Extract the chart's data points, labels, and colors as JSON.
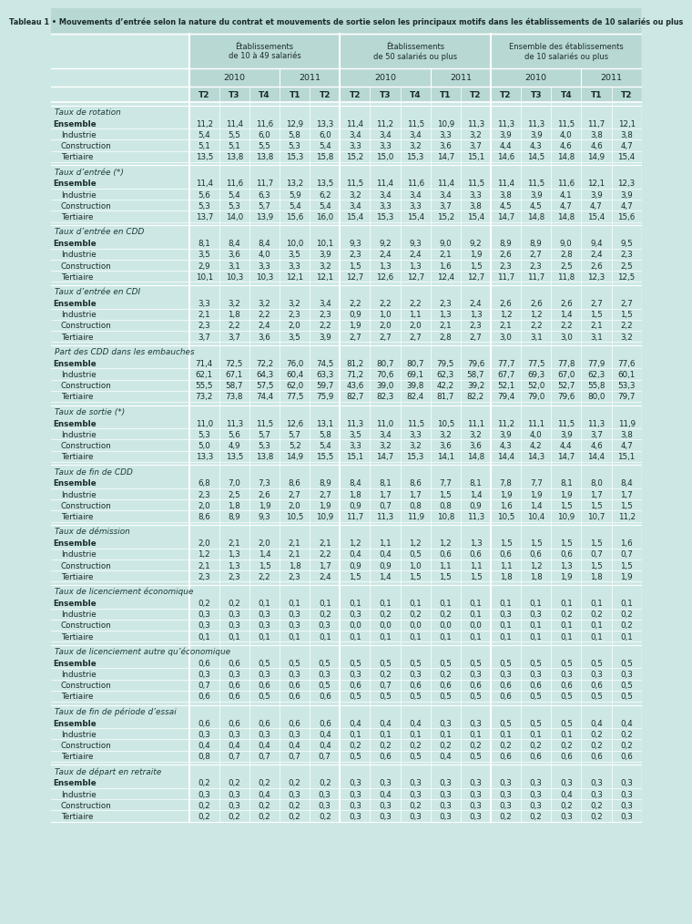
{
  "title": "Tableau 1 • Mouvements d’entrée selon la nature du contrat et mouvements de sortie selon les principaux motifs dans les établissements de 10 salariés ou plus",
  "col_groups": [
    {
      "label": "Établissements\nde 10 à 49 salariés"
    },
    {
      "label": "Établissements\nde 50 salariés ou plus"
    },
    {
      "label": "Ensemble des établissements\nde 10 salariés ou plus"
    }
  ],
  "quarters": [
    "T2",
    "T3",
    "T4",
    "T1",
    "T2"
  ],
  "sections": [
    {
      "title": "Taux de rotation",
      "rows": [
        {
          "label": "Ensemble",
          "bold": true,
          "values": [
            11.2,
            11.4,
            11.6,
            12.9,
            13.3,
            11.4,
            11.2,
            11.5,
            10.9,
            11.3,
            11.3,
            11.3,
            11.5,
            11.7,
            12.1
          ]
        },
        {
          "label": "Industrie",
          "bold": false,
          "values": [
            5.4,
            5.5,
            6.0,
            5.8,
            6.0,
            3.4,
            3.4,
            3.4,
            3.3,
            3.2,
            3.9,
            3.9,
            4.0,
            3.8,
            3.8
          ]
        },
        {
          "label": "Construction",
          "bold": false,
          "values": [
            5.1,
            5.1,
            5.5,
            5.3,
            5.4,
            3.3,
            3.3,
            3.2,
            3.6,
            3.7,
            4.4,
            4.3,
            4.6,
            4.6,
            4.7
          ]
        },
        {
          "label": "Tertiaire",
          "bold": false,
          "values": [
            13.5,
            13.8,
            13.8,
            15.3,
            15.8,
            15.2,
            15.0,
            15.3,
            14.7,
            15.1,
            14.6,
            14.5,
            14.8,
            14.9,
            15.4
          ]
        }
      ]
    },
    {
      "title": "Taux d’entrée (*)",
      "rows": [
        {
          "label": "Ensemble",
          "bold": true,
          "values": [
            11.4,
            11.6,
            11.7,
            13.2,
            13.5,
            11.5,
            11.4,
            11.6,
            11.4,
            11.5,
            11.4,
            11.5,
            11.6,
            12.1,
            12.3
          ]
        },
        {
          "label": "Industrie",
          "bold": false,
          "values": [
            5.6,
            5.4,
            6.3,
            5.9,
            6.2,
            3.2,
            3.4,
            3.4,
            3.4,
            3.3,
            3.8,
            3.9,
            4.1,
            3.9,
            3.9
          ]
        },
        {
          "label": "Construction",
          "bold": false,
          "values": [
            5.3,
            5.3,
            5.7,
            5.4,
            5.4,
            3.4,
            3.3,
            3.3,
            3.7,
            3.8,
            4.5,
            4.5,
            4.7,
            4.7,
            4.7
          ]
        },
        {
          "label": "Tertiaire",
          "bold": false,
          "values": [
            13.7,
            14.0,
            13.9,
            15.6,
            16.0,
            15.4,
            15.3,
            15.4,
            15.2,
            15.4,
            14.7,
            14.8,
            14.8,
            15.4,
            15.6
          ]
        }
      ]
    },
    {
      "title": "Taux d’entrée en CDD",
      "rows": [
        {
          "label": "Ensemble",
          "bold": true,
          "values": [
            8.1,
            8.4,
            8.4,
            10.0,
            10.1,
            9.3,
            9.2,
            9.3,
            9.0,
            9.2,
            8.9,
            8.9,
            9.0,
            9.4,
            9.5
          ]
        },
        {
          "label": "Industrie",
          "bold": false,
          "values": [
            3.5,
            3.6,
            4.0,
            3.5,
            3.9,
            2.3,
            2.4,
            2.4,
            2.1,
            1.9,
            2.6,
            2.7,
            2.8,
            2.4,
            2.3
          ]
        },
        {
          "label": "Construction",
          "bold": false,
          "values": [
            2.9,
            3.1,
            3.3,
            3.3,
            3.2,
            1.5,
            1.3,
            1.3,
            1.6,
            1.5,
            2.3,
            2.3,
            2.5,
            2.6,
            2.5
          ]
        },
        {
          "label": "Tertiaire",
          "bold": false,
          "values": [
            10.1,
            10.3,
            10.3,
            12.1,
            12.1,
            12.7,
            12.6,
            12.7,
            12.4,
            12.7,
            11.7,
            11.7,
            11.8,
            12.3,
            12.5
          ]
        }
      ]
    },
    {
      "title": "Taux d’entrée en CDI",
      "rows": [
        {
          "label": "Ensemble",
          "bold": true,
          "values": [
            3.3,
            3.2,
            3.2,
            3.2,
            3.4,
            2.2,
            2.2,
            2.2,
            2.3,
            2.4,
            2.6,
            2.6,
            2.6,
            2.7,
            2.7
          ]
        },
        {
          "label": "Industrie",
          "bold": false,
          "values": [
            2.1,
            1.8,
            2.2,
            2.3,
            2.3,
            0.9,
            1.0,
            1.1,
            1.3,
            1.3,
            1.2,
            1.2,
            1.4,
            1.5,
            1.5
          ]
        },
        {
          "label": "Construction",
          "bold": false,
          "values": [
            2.3,
            2.2,
            2.4,
            2.0,
            2.2,
            1.9,
            2.0,
            2.0,
            2.1,
            2.3,
            2.1,
            2.2,
            2.2,
            2.1,
            2.2
          ]
        },
        {
          "label": "Tertiaire",
          "bold": false,
          "values": [
            3.7,
            3.7,
            3.6,
            3.5,
            3.9,
            2.7,
            2.7,
            2.7,
            2.8,
            2.7,
            3.0,
            3.1,
            3.0,
            3.1,
            3.2
          ]
        }
      ]
    },
    {
      "title": "Part des CDD dans les embauches",
      "rows": [
        {
          "label": "Ensemble",
          "bold": true,
          "values": [
            71.4,
            72.5,
            72.2,
            76.0,
            74.5,
            81.2,
            80.7,
            80.7,
            79.5,
            79.6,
            77.7,
            77.5,
            77.8,
            77.9,
            77.6
          ]
        },
        {
          "label": "Industrie",
          "bold": false,
          "values": [
            62.1,
            67.1,
            64.3,
            60.4,
            63.3,
            71.2,
            70.6,
            69.1,
            62.3,
            58.7,
            67.7,
            69.3,
            67.0,
            62.3,
            60.1
          ]
        },
        {
          "label": "Construction",
          "bold": false,
          "values": [
            55.5,
            58.7,
            57.5,
            62.0,
            59.7,
            43.6,
            39.0,
            39.8,
            42.2,
            39.2,
            52.1,
            52.0,
            52.7,
            55.8,
            53.3
          ]
        },
        {
          "label": "Tertiaire",
          "bold": false,
          "values": [
            73.2,
            73.8,
            74.4,
            77.5,
            75.9,
            82.7,
            82.3,
            82.4,
            81.7,
            82.2,
            79.4,
            79.0,
            79.6,
            80.0,
            79.7
          ]
        }
      ]
    },
    {
      "title": "Taux de sortie (*)",
      "rows": [
        {
          "label": "Ensemble",
          "bold": true,
          "values": [
            11.0,
            11.3,
            11.5,
            12.6,
            13.1,
            11.3,
            11.0,
            11.5,
            10.5,
            11.1,
            11.2,
            11.1,
            11.5,
            11.3,
            11.9
          ]
        },
        {
          "label": "Industrie",
          "bold": false,
          "values": [
            5.3,
            5.6,
            5.7,
            5.7,
            5.8,
            3.5,
            3.4,
            3.3,
            3.2,
            3.2,
            3.9,
            4.0,
            3.9,
            3.7,
            3.8
          ]
        },
        {
          "label": "Construction",
          "bold": false,
          "values": [
            5.0,
            4.9,
            5.3,
            5.2,
            5.4,
            3.3,
            3.2,
            3.2,
            3.6,
            3.6,
            4.3,
            4.2,
            4.4,
            4.6,
            4.7
          ]
        },
        {
          "label": "Tertiaire",
          "bold": false,
          "values": [
            13.3,
            13.5,
            13.8,
            14.9,
            15.5,
            15.1,
            14.7,
            15.3,
            14.1,
            14.8,
            14.4,
            14.3,
            14.7,
            14.4,
            15.1
          ]
        }
      ]
    },
    {
      "title": "Taux de fin de CDD",
      "rows": [
        {
          "label": "Ensemble",
          "bold": true,
          "values": [
            6.8,
            7.0,
            7.3,
            8.6,
            8.9,
            8.4,
            8.1,
            8.6,
            7.7,
            8.1,
            7.8,
            7.7,
            8.1,
            8.0,
            8.4
          ]
        },
        {
          "label": "Industrie",
          "bold": false,
          "values": [
            2.3,
            2.5,
            2.6,
            2.7,
            2.7,
            1.8,
            1.7,
            1.7,
            1.5,
            1.4,
            1.9,
            1.9,
            1.9,
            1.7,
            1.7
          ]
        },
        {
          "label": "Construction",
          "bold": false,
          "values": [
            2.0,
            1.8,
            1.9,
            2.0,
            1.9,
            0.9,
            0.7,
            0.8,
            0.8,
            0.9,
            1.6,
            1.4,
            1.5,
            1.5,
            1.5
          ]
        },
        {
          "label": "Tertiaire",
          "bold": false,
          "values": [
            8.6,
            8.9,
            9.3,
            10.5,
            10.9,
            11.7,
            11.3,
            11.9,
            10.8,
            11.3,
            10.5,
            10.4,
            10.9,
            10.7,
            11.2
          ]
        }
      ]
    },
    {
      "title": "Taux de démission",
      "rows": [
        {
          "label": "Ensemble",
          "bold": true,
          "values": [
            2.0,
            2.1,
            2.0,
            2.1,
            2.1,
            1.2,
            1.1,
            1.2,
            1.2,
            1.3,
            1.5,
            1.5,
            1.5,
            1.5,
            1.6
          ]
        },
        {
          "label": "Industrie",
          "bold": false,
          "values": [
            1.2,
            1.3,
            1.4,
            2.1,
            2.2,
            0.4,
            0.4,
            0.5,
            0.6,
            0.6,
            0.6,
            0.6,
            0.6,
            0.7,
            0.7
          ]
        },
        {
          "label": "Construction",
          "bold": false,
          "values": [
            2.1,
            1.3,
            1.5,
            1.8,
            1.7,
            0.9,
            0.9,
            1.0,
            1.1,
            1.1,
            1.1,
            1.2,
            1.3,
            1.5,
            1.5
          ]
        },
        {
          "label": "Tertiaire",
          "bold": false,
          "values": [
            2.3,
            2.3,
            2.2,
            2.3,
            2.4,
            1.5,
            1.4,
            1.5,
            1.5,
            1.5,
            1.8,
            1.8,
            1.9,
            1.8,
            1.9
          ]
        }
      ]
    },
    {
      "title": "Taux de licenciement économique",
      "rows": [
        {
          "label": "Ensemble",
          "bold": true,
          "values": [
            0.2,
            0.2,
            0.1,
            0.1,
            0.1,
            0.1,
            0.1,
            0.1,
            0.1,
            0.1,
            0.1,
            0.1,
            0.1,
            0.1,
            0.1
          ]
        },
        {
          "label": "Industrie",
          "bold": false,
          "values": [
            0.3,
            0.3,
            0.3,
            0.3,
            0.2,
            0.3,
            0.2,
            0.2,
            0.2,
            0.1,
            0.3,
            0.3,
            0.2,
            0.2,
            0.2
          ]
        },
        {
          "label": "Construction",
          "bold": false,
          "values": [
            0.3,
            0.3,
            0.3,
            0.3,
            0.3,
            0.0,
            0.0,
            0.0,
            0.0,
            0.0,
            0.1,
            0.1,
            0.1,
            0.1,
            0.2
          ]
        },
        {
          "label": "Tertiaire",
          "bold": false,
          "values": [
            0.1,
            0.1,
            0.1,
            0.1,
            0.1,
            0.1,
            0.1,
            0.1,
            0.1,
            0.1,
            0.1,
            0.1,
            0.1,
            0.1,
            0.1
          ]
        }
      ]
    },
    {
      "title": "Taux de licenciement autre qu’économique",
      "rows": [
        {
          "label": "Ensemble",
          "bold": true,
          "values": [
            0.6,
            0.6,
            0.5,
            0.5,
            0.5,
            0.5,
            0.5,
            0.5,
            0.5,
            0.5,
            0.5,
            0.5,
            0.5,
            0.5,
            0.5
          ]
        },
        {
          "label": "Industrie",
          "bold": false,
          "values": [
            0.3,
            0.3,
            0.3,
            0.3,
            0.3,
            0.3,
            0.2,
            0.3,
            0.2,
            0.3,
            0.3,
            0.3,
            0.3,
            0.3,
            0.3
          ]
        },
        {
          "label": "Construction",
          "bold": false,
          "values": [
            0.7,
            0.6,
            0.6,
            0.6,
            0.5,
            0.6,
            0.7,
            0.6,
            0.6,
            0.6,
            0.6,
            0.6,
            0.6,
            0.6,
            0.5
          ]
        },
        {
          "label": "Tertiaire",
          "bold": false,
          "values": [
            0.6,
            0.6,
            0.5,
            0.6,
            0.6,
            0.5,
            0.5,
            0.5,
            0.5,
            0.5,
            0.6,
            0.5,
            0.5,
            0.5,
            0.5
          ]
        }
      ]
    },
    {
      "title": "Taux de fin de période d’essai",
      "rows": [
        {
          "label": "Ensemble",
          "bold": true,
          "values": [
            0.6,
            0.6,
            0.6,
            0.6,
            0.6,
            0.4,
            0.4,
            0.4,
            0.3,
            0.3,
            0.5,
            0.5,
            0.5,
            0.4,
            0.4
          ]
        },
        {
          "label": "Industrie",
          "bold": false,
          "values": [
            0.3,
            0.3,
            0.3,
            0.3,
            0.4,
            0.1,
            0.1,
            0.1,
            0.1,
            0.1,
            0.1,
            0.1,
            0.1,
            0.2,
            0.2
          ]
        },
        {
          "label": "Construction",
          "bold": false,
          "values": [
            0.4,
            0.4,
            0.4,
            0.4,
            0.4,
            0.2,
            0.2,
            0.2,
            0.2,
            0.2,
            0.2,
            0.2,
            0.2,
            0.2,
            0.2
          ]
        },
        {
          "label": "Tertiaire",
          "bold": false,
          "values": [
            0.8,
            0.7,
            0.7,
            0.7,
            0.7,
            0.5,
            0.6,
            0.5,
            0.4,
            0.5,
            0.6,
            0.6,
            0.6,
            0.6,
            0.6
          ]
        }
      ]
    },
    {
      "title": "Taux de départ en retraite",
      "rows": [
        {
          "label": "Ensemble",
          "bold": true,
          "values": [
            0.2,
            0.2,
            0.2,
            0.2,
            0.2,
            0.3,
            0.3,
            0.3,
            0.3,
            0.3,
            0.3,
            0.3,
            0.3,
            0.3,
            0.3
          ]
        },
        {
          "label": "Industrie",
          "bold": false,
          "values": [
            0.3,
            0.3,
            0.4,
            0.3,
            0.3,
            0.3,
            0.4,
            0.3,
            0.3,
            0.3,
            0.3,
            0.3,
            0.4,
            0.3,
            0.3
          ]
        },
        {
          "label": "Construction",
          "bold": false,
          "values": [
            0.2,
            0.3,
            0.2,
            0.2,
            0.3,
            0.3,
            0.3,
            0.2,
            0.3,
            0.3,
            0.3,
            0.3,
            0.2,
            0.2,
            0.3
          ]
        },
        {
          "label": "Tertiaire",
          "bold": false,
          "values": [
            0.2,
            0.2,
            0.2,
            0.2,
            0.2,
            0.3,
            0.3,
            0.3,
            0.3,
            0.3,
            0.2,
            0.2,
            0.3,
            0.2,
            0.3
          ]
        }
      ]
    }
  ],
  "bg_color": "#cde8e4",
  "header_bg": "#b8d8d4",
  "text_color": "#1a2a2a"
}
